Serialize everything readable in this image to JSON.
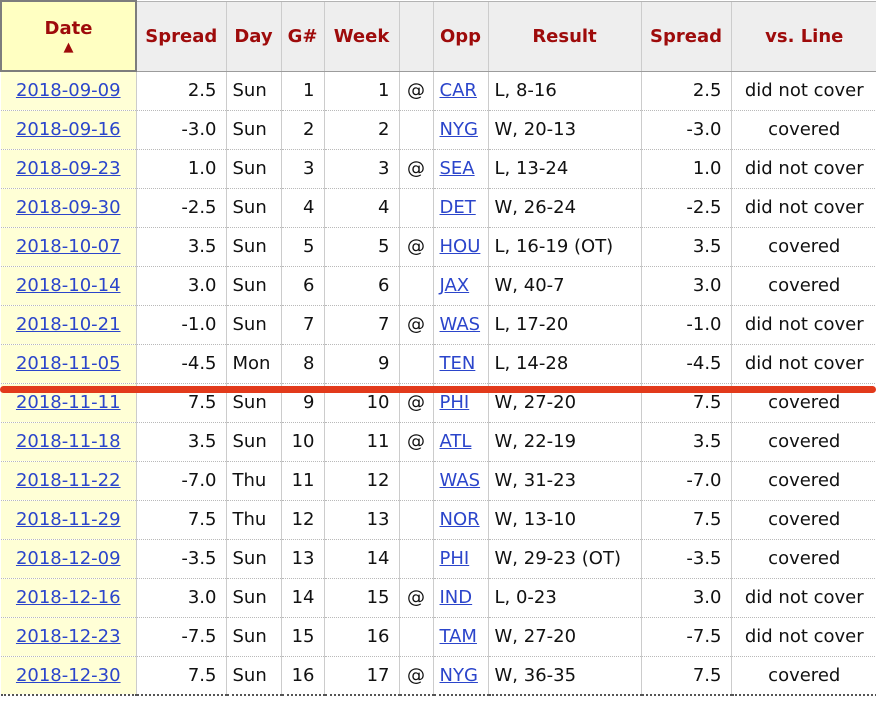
{
  "colors": {
    "header_text": "#9e0b0b",
    "header_bg": "#eeeeee",
    "sorted_header_bg": "#ffffc2",
    "sorted_cell_bg": "#ffffd6",
    "link": "#2b45cb",
    "annotation_line": "#e23a1b"
  },
  "sort_icon": "▲",
  "columns": [
    {
      "key": "date",
      "label": "Date",
      "sorted": true
    },
    {
      "key": "spread",
      "label": "Spread"
    },
    {
      "key": "day",
      "label": "Day"
    },
    {
      "key": "game",
      "label": "G#"
    },
    {
      "key": "week",
      "label": "Week"
    },
    {
      "key": "at",
      "label": ""
    },
    {
      "key": "opp",
      "label": "Opp"
    },
    {
      "key": "result",
      "label": "Result"
    },
    {
      "key": "spread_close",
      "label": "Spread"
    },
    {
      "key": "vs_line",
      "label": "vs. Line"
    }
  ],
  "rows": [
    {
      "date": "2018-09-09",
      "spread": "2.5",
      "day": "Sun",
      "game": "1",
      "week": "1",
      "at": "@",
      "opp": "CAR",
      "result": "L, 8-16",
      "spread_close": "2.5",
      "vs_line": "did not cover"
    },
    {
      "date": "2018-09-16",
      "spread": "-3.0",
      "day": "Sun",
      "game": "2",
      "week": "2",
      "at": "",
      "opp": "NYG",
      "result": "W, 20-13",
      "spread_close": "-3.0",
      "vs_line": "covered"
    },
    {
      "date": "2018-09-23",
      "spread": "1.0",
      "day": "Sun",
      "game": "3",
      "week": "3",
      "at": "@",
      "opp": "SEA",
      "result": "L, 13-24",
      "spread_close": "1.0",
      "vs_line": "did not cover"
    },
    {
      "date": "2018-09-30",
      "spread": "-2.5",
      "day": "Sun",
      "game": "4",
      "week": "4",
      "at": "",
      "opp": "DET",
      "result": "W, 26-24",
      "spread_close": "-2.5",
      "vs_line": "did not cover"
    },
    {
      "date": "2018-10-07",
      "spread": "3.5",
      "day": "Sun",
      "game": "5",
      "week": "5",
      "at": "@",
      "opp": "HOU",
      "result": "L, 16-19 (OT)",
      "spread_close": "3.5",
      "vs_line": "covered"
    },
    {
      "date": "2018-10-14",
      "spread": "3.0",
      "day": "Sun",
      "game": "6",
      "week": "6",
      "at": "",
      "opp": "JAX",
      "result": "W, 40-7",
      "spread_close": "3.0",
      "vs_line": "covered"
    },
    {
      "date": "2018-10-21",
      "spread": "-1.0",
      "day": "Sun",
      "game": "7",
      "week": "7",
      "at": "@",
      "opp": "WAS",
      "result": "L, 17-20",
      "spread_close": "-1.0",
      "vs_line": "did not cover"
    },
    {
      "date": "2018-11-05",
      "spread": "-4.5",
      "day": "Mon",
      "game": "8",
      "week": "9",
      "at": "",
      "opp": "TEN",
      "result": "L, 14-28",
      "spread_close": "-4.5",
      "vs_line": "did not cover"
    },
    {
      "date": "2018-11-11",
      "spread": "7.5",
      "day": "Sun",
      "game": "9",
      "week": "10",
      "at": "@",
      "opp": "PHI",
      "result": "W, 27-20",
      "spread_close": "7.5",
      "vs_line": "covered"
    },
    {
      "date": "2018-11-18",
      "spread": "3.5",
      "day": "Sun",
      "game": "10",
      "week": "11",
      "at": "@",
      "opp": "ATL",
      "result": "W, 22-19",
      "spread_close": "3.5",
      "vs_line": "covered"
    },
    {
      "date": "2018-11-22",
      "spread": "-7.0",
      "day": "Thu",
      "game": "11",
      "week": "12",
      "at": "",
      "opp": "WAS",
      "result": "W, 31-23",
      "spread_close": "-7.0",
      "vs_line": "covered"
    },
    {
      "date": "2018-11-29",
      "spread": "7.5",
      "day": "Thu",
      "game": "12",
      "week": "13",
      "at": "",
      "opp": "NOR",
      "result": "W, 13-10",
      "spread_close": "7.5",
      "vs_line": "covered"
    },
    {
      "date": "2018-12-09",
      "spread": "-3.5",
      "day": "Sun",
      "game": "13",
      "week": "14",
      "at": "",
      "opp": "PHI",
      "result": "W, 29-23 (OT)",
      "spread_close": "-3.5",
      "vs_line": "covered"
    },
    {
      "date": "2018-12-16",
      "spread": "3.0",
      "day": "Sun",
      "game": "14",
      "week": "15",
      "at": "@",
      "opp": "IND",
      "result": "L, 0-23",
      "spread_close": "3.0",
      "vs_line": "did not cover"
    },
    {
      "date": "2018-12-23",
      "spread": "-7.5",
      "day": "Sun",
      "game": "15",
      "week": "16",
      "at": "",
      "opp": "TAM",
      "result": "W, 27-20",
      "spread_close": "-7.5",
      "vs_line": "did not cover"
    },
    {
      "date": "2018-12-30",
      "spread": "7.5",
      "day": "Sun",
      "game": "16",
      "week": "17",
      "at": "@",
      "opp": "NYG",
      "result": "W, 36-35",
      "spread_close": "7.5",
      "vs_line": "covered"
    }
  ],
  "annotation": {
    "type": "red-underline",
    "after_row": 8
  }
}
